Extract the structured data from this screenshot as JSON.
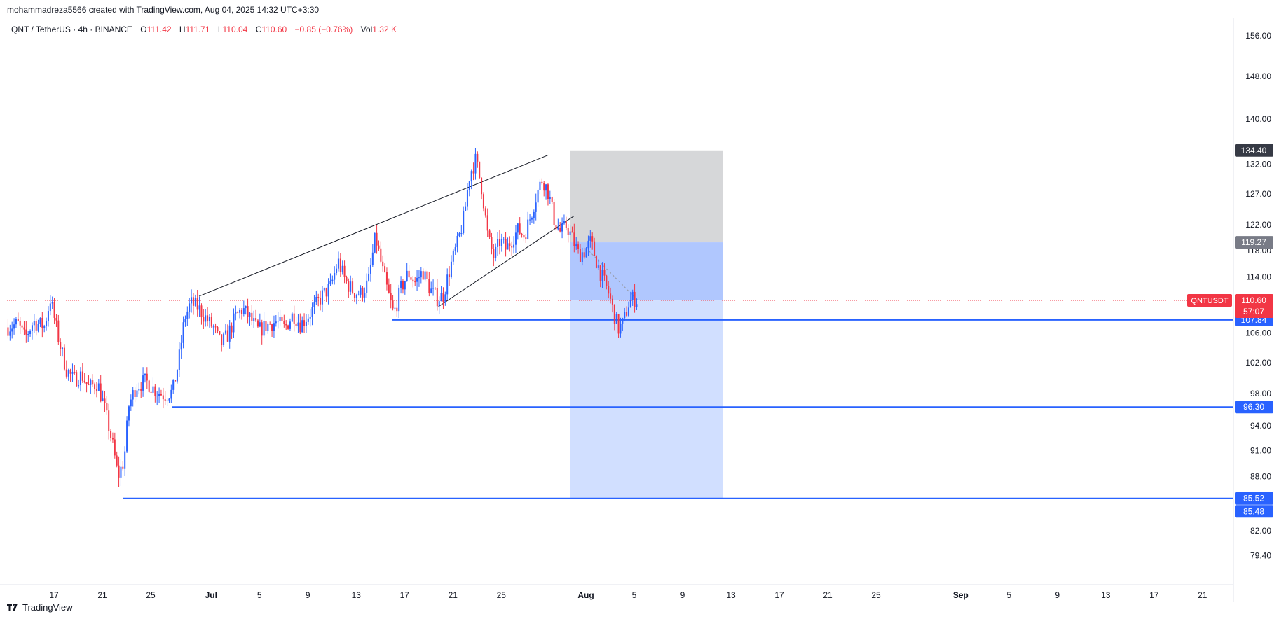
{
  "header": {
    "credit": "mohammadreza5566 created with TradingView.com, Aug 04, 2025 14:32 UTC+3:30"
  },
  "legend": {
    "symbol": "QNT / TetherUS · 4h · BINANCE",
    "o_label": "O",
    "o": "111.42",
    "h_label": "H",
    "h": "111.71",
    "l_label": "L",
    "l": "110.04",
    "c_label": "C",
    "c": "110.60",
    "change": "−0.85 (−0.76%)",
    "vol_label": "Vol",
    "vol": "1.32 K"
  },
  "footer": {
    "brand": "TradingView"
  },
  "colors": {
    "up": "#2962ff",
    "down": "#f23645",
    "level_line": "#2962ff",
    "target_zone": "#d1dfff",
    "target_zone_upper": "#b0c7fe",
    "stop_zone": "#d6d7d9"
  },
  "chart_data": {
    "type": "candlestick",
    "symbol": "QNTUSDT",
    "timeframe": "4h",
    "y_scale": "log",
    "ylim": [
      77.5,
      159
    ],
    "y_ticks": [
      156.0,
      148.0,
      140.0,
      132.0,
      127.0,
      122.0,
      118.0,
      114.0,
      106.0,
      102.0,
      98.0,
      94.0,
      91.0,
      88.0,
      82.0,
      79.4
    ],
    "x_range_days": [
      0,
      96
    ],
    "x_ticks": [
      {
        "day": 0,
        "label": "17"
      },
      {
        "day": 4,
        "label": "21"
      },
      {
        "day": 8,
        "label": "25"
      },
      {
        "day": 13,
        "label": "Jul"
      },
      {
        "day": 17,
        "label": "5"
      },
      {
        "day": 21,
        "label": "9"
      },
      {
        "day": 25,
        "label": "13"
      },
      {
        "day": 29,
        "label": "17"
      },
      {
        "day": 33,
        "label": "21"
      },
      {
        "day": 37,
        "label": "25"
      },
      {
        "day": 44,
        "label": "Aug"
      },
      {
        "day": 48,
        "label": "5"
      },
      {
        "day": 52,
        "label": "9"
      },
      {
        "day": 56,
        "label": "13"
      },
      {
        "day": 60,
        "label": "17"
      },
      {
        "day": 64,
        "label": "21"
      },
      {
        "day": 68,
        "label": "25"
      },
      {
        "day": 75,
        "label": "Sep"
      },
      {
        "day": 79,
        "label": "5"
      },
      {
        "day": 83,
        "label": "9"
      },
      {
        "day": 87,
        "label": "13"
      },
      {
        "day": 91,
        "label": "17"
      },
      {
        "day": 95,
        "label": "21"
      }
    ],
    "price_path": [
      [
        -3.8,
        106.8
      ],
      [
        -3.0,
        107.3
      ],
      [
        -2.4,
        105.3
      ],
      [
        -1.7,
        107.6
      ],
      [
        -0.8,
        106.9
      ],
      [
        -0.3,
        110.8
      ],
      [
        0.4,
        105.1
      ],
      [
        1.0,
        101.2
      ],
      [
        1.6,
        99.8
      ],
      [
        2.3,
        100.4
      ],
      [
        2.9,
        98.7
      ],
      [
        3.6,
        99.4
      ],
      [
        4.2,
        96.0
      ],
      [
        4.8,
        92.1
      ],
      [
        5.3,
        88.0
      ],
      [
        5.8,
        89.8
      ],
      [
        6.2,
        96.5
      ],
      [
        6.8,
        99.0
      ],
      [
        7.6,
        99.6
      ],
      [
        8.4,
        98.4
      ],
      [
        9.1,
        97.8
      ],
      [
        9.8,
        98.2
      ],
      [
        10.3,
        102.0
      ],
      [
        10.8,
        108.0
      ],
      [
        11.3,
        110.2
      ],
      [
        11.9,
        109.6
      ],
      [
        12.6,
        108.0
      ],
      [
        13.2,
        106.7
      ],
      [
        13.8,
        104.5
      ],
      [
        14.4,
        105.8
      ],
      [
        15.0,
        108.2
      ],
      [
        15.6,
        109.4
      ],
      [
        16.2,
        108.1
      ],
      [
        16.9,
        106.3
      ],
      [
        17.6,
        107.1
      ],
      [
        18.4,
        107.6
      ],
      [
        19.1,
        106.7
      ],
      [
        19.8,
        108.7
      ],
      [
        20.4,
        107.2
      ],
      [
        21.0,
        108.4
      ],
      [
        21.6,
        109.7
      ],
      [
        22.2,
        111.3
      ],
      [
        22.9,
        112.6
      ],
      [
        23.5,
        116.4
      ],
      [
        24.1,
        113.4
      ],
      [
        24.8,
        111.8
      ],
      [
        25.4,
        111.6
      ],
      [
        26.0,
        113.2
      ],
      [
        26.6,
        120.2
      ],
      [
        27.1,
        115.6
      ],
      [
        27.6,
        111.8
      ],
      [
        28.1,
        108.6
      ],
      [
        28.7,
        112.3
      ],
      [
        29.3,
        114.6
      ],
      [
        29.9,
        113.2
      ],
      [
        30.5,
        114.9
      ],
      [
        31.1,
        112.2
      ],
      [
        31.7,
        110.9
      ],
      [
        32.2,
        111.3
      ],
      [
        32.8,
        115.6
      ],
      [
        33.4,
        119.2
      ],
      [
        33.9,
        123.1
      ],
      [
        34.4,
        130.4
      ],
      [
        34.9,
        132.8
      ],
      [
        35.4,
        127.8
      ],
      [
        35.9,
        120.0
      ],
      [
        36.4,
        116.9
      ],
      [
        36.9,
        119.6
      ],
      [
        37.4,
        118.2
      ],
      [
        37.9,
        119.8
      ],
      [
        38.4,
        121.2
      ],
      [
        38.9,
        120.3
      ],
      [
        39.4,
        123.2
      ],
      [
        39.9,
        126.7
      ],
      [
        40.4,
        129.6
      ],
      [
        40.9,
        127.2
      ],
      [
        41.4,
        122.6
      ],
      [
        41.9,
        120.8
      ],
      [
        42.4,
        121.9
      ],
      [
        42.9,
        119.7
      ],
      [
        43.4,
        117.4
      ],
      [
        43.9,
        117.9
      ],
      [
        44.4,
        119.4
      ],
      [
        44.9,
        116.2
      ],
      [
        45.4,
        113.7
      ],
      [
        45.9,
        111.5
      ],
      [
        46.3,
        108.8
      ],
      [
        46.7,
        106.6
      ],
      [
        47.1,
        107.4
      ],
      [
        47.5,
        110.0
      ],
      [
        47.9,
        110.9
      ],
      [
        48.3,
        110.6
      ]
    ],
    "horizontal_levels": [
      {
        "price": 107.84,
        "label": "107.84"
      },
      {
        "price": 96.3,
        "label": "96.30"
      },
      {
        "price": 85.52,
        "label": "85.52"
      }
    ],
    "extra_price_label": {
      "price": 85.48,
      "label": "85.48"
    },
    "current_price": {
      "price": 110.6,
      "symbol_label": "QNTUSDT",
      "label": "110.60",
      "countdown": "57:07"
    },
    "position_tool": {
      "type": "short",
      "stop": 134.4,
      "stop_label": "134.40",
      "entry": 119.27,
      "entry_label": "119.27",
      "target": 85.52
    },
    "trendlines": [
      {
        "from": [
          12.0,
          111.2
        ],
        "to": [
          40.9,
          133.6
        ]
      },
      {
        "from": [
          31.8,
          109.7
        ],
        "to": [
          43.0,
          123.4
        ]
      }
    ]
  }
}
